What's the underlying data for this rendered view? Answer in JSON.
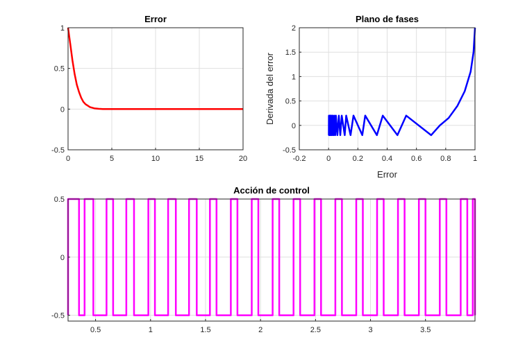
{
  "chart_data": [
    {
      "id": "error",
      "type": "line",
      "title": "Error",
      "xlabel": "",
      "ylabel": "",
      "xlim": [
        0,
        20
      ],
      "ylim": [
        -0.5,
        1
      ],
      "xticks": [
        0,
        5,
        10,
        15,
        20
      ],
      "xtick_labels": [
        "0",
        "5",
        "10",
        "15",
        "20"
      ],
      "yticks": [
        -0.5,
        0,
        0.5,
        1
      ],
      "ytick_labels": [
        "-0.5",
        "0",
        "0.5",
        "1"
      ],
      "grid": true,
      "series": [
        {
          "color": "#ff0000",
          "x": [
            0,
            0.25,
            0.5,
            0.75,
            1,
            1.25,
            1.5,
            1.75,
            2,
            2.5,
            3,
            3.5,
            4,
            5,
            6,
            8,
            10,
            12,
            14,
            16,
            18,
            20
          ],
          "y": [
            1,
            0.8,
            0.6,
            0.43,
            0.3,
            0.21,
            0.14,
            0.09,
            0.06,
            0.025,
            0.01,
            0.004,
            0,
            0,
            0,
            0,
            0,
            0,
            0,
            0,
            0,
            0
          ]
        }
      ]
    },
    {
      "id": "phase",
      "type": "line",
      "title": "Plano de fases",
      "xlabel": "Error",
      "ylabel": "Derivada del error",
      "xlim": [
        -0.2,
        1
      ],
      "ylim": [
        -0.5,
        2
      ],
      "xticks": [
        -0.2,
        0,
        0.2,
        0.4,
        0.6,
        0.8,
        1
      ],
      "xtick_labels": [
        "-0.2",
        "0",
        "0.2",
        "0.4",
        "0.6",
        "0.8",
        "1"
      ],
      "yticks": [
        -0.5,
        0,
        0.5,
        1,
        1.5,
        2
      ],
      "ytick_labels": [
        "-0.5",
        "0",
        "0.5",
        "1",
        "1.5",
        "2"
      ],
      "grid": true,
      "series": [
        {
          "color": "#0000ff",
          "x": [
            1,
            0.99,
            0.97,
            0.93,
            0.88,
            0.82,
            0.76,
            0.7,
            0.53,
            0.47,
            0.37,
            0.33,
            0.25,
            0.23,
            0.17,
            0.15,
            0.12,
            0.11,
            0.09,
            0.08,
            0.07,
            0.06,
            0.05,
            0.045,
            0.04,
            0.035,
            0.03,
            0.027,
            0.024,
            0.021,
            0.018,
            0.016,
            0.014,
            0.012,
            0.01,
            0.008,
            0.006,
            0.005,
            0.004,
            0.003,
            0.002,
            0.0015
          ],
          "y": [
            2,
            1.5,
            1.1,
            0.7,
            0.4,
            0.15,
            0,
            -0.2,
            0.2,
            -0.2,
            0.2,
            -0.2,
            0.2,
            -0.2,
            0.2,
            -0.2,
            0.2,
            -0.2,
            0.2,
            -0.2,
            0.2,
            -0.2,
            0.2,
            -0.2,
            0.2,
            -0.2,
            0.2,
            -0.2,
            0.2,
            -0.2,
            0.2,
            -0.2,
            0.2,
            -0.2,
            0.2,
            -0.2,
            0.2,
            -0.2,
            0.2,
            -0.2,
            0.2,
            -0.2
          ]
        }
      ]
    },
    {
      "id": "control",
      "type": "line",
      "title": "Acción de control",
      "xlabel": "",
      "ylabel": "",
      "xlim": [
        0.25,
        3.95
      ],
      "ylim": [
        -0.55,
        0.5
      ],
      "xticks": [
        0.5,
        1,
        1.5,
        2,
        2.5,
        3,
        3.5
      ],
      "xtick_labels": [
        "0.5",
        "1",
        "1.5",
        "2",
        "2.5",
        "3",
        "3.5"
      ],
      "yticks": [
        -0.5,
        0,
        0.5
      ],
      "ytick_labels": [
        "-0.5",
        "0",
        "0.5"
      ],
      "grid": true,
      "series": [
        {
          "color": "#ff00ff",
          "high": 0.5,
          "low": -0.5,
          "high_intervals": [
            [
              0.25,
              0.35
            ],
            [
              0.4,
              0.48
            ],
            [
              0.6,
              0.66
            ],
            [
              0.78,
              0.85
            ],
            [
              0.98,
              1.04
            ],
            [
              1.16,
              1.23
            ],
            [
              1.35,
              1.42
            ],
            [
              1.54,
              1.6
            ],
            [
              1.73,
              1.79
            ],
            [
              1.92,
              1.98
            ],
            [
              2.11,
              2.17
            ],
            [
              2.3,
              2.36
            ],
            [
              2.49,
              2.55
            ],
            [
              2.68,
              2.74
            ],
            [
              2.87,
              2.93
            ],
            [
              3.06,
              3.12
            ],
            [
              3.25,
              3.31
            ],
            [
              3.44,
              3.5
            ],
            [
              3.63,
              3.69
            ],
            [
              3.82,
              3.88
            ],
            [
              3.93,
              3.95
            ]
          ]
        }
      ]
    }
  ]
}
